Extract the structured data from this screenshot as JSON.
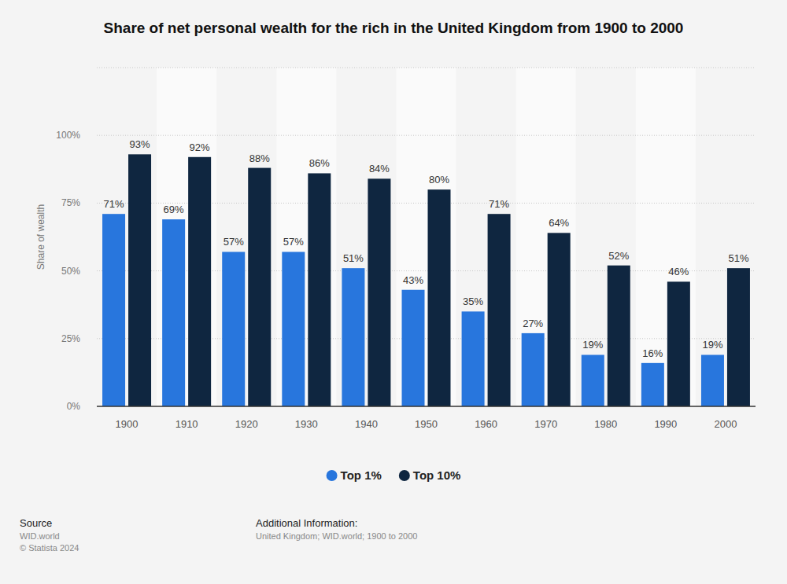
{
  "chart_data": {
    "type": "bar",
    "title": "Share of net personal wealth for the rich in the United Kingdom from 1900 to 2000",
    "y_label": "Share of wealth",
    "categories": [
      "1900",
      "1910",
      "1920",
      "1930",
      "1940",
      "1950",
      "1960",
      "1970",
      "1980",
      "1990",
      "2000"
    ],
    "series": [
      {
        "name": "Top 1%",
        "color": "#2876dd",
        "values": [
          71,
          69,
          57,
          57,
          51,
          43,
          35,
          27,
          19,
          16,
          19
        ],
        "value_labels": [
          "71%",
          "69%",
          "57%",
          "57%",
          "51%",
          "43%",
          "35%",
          "27%",
          "19%",
          "16%",
          "19%"
        ]
      },
      {
        "name": "Top 10%",
        "color": "#0f2640",
        "values": [
          93,
          92,
          88,
          86,
          84,
          80,
          71,
          64,
          52,
          46,
          51
        ],
        "value_labels": [
          "93%",
          "92%",
          "88%",
          "86%",
          "84%",
          "80%",
          "71%",
          "64%",
          "52%",
          "46%",
          "51%"
        ]
      }
    ],
    "ylim": [
      0,
      125
    ],
    "yticks": [
      {
        "value": 0,
        "label": "0%"
      },
      {
        "value": 25,
        "label": "25%"
      },
      {
        "value": 50,
        "label": "50%"
      },
      {
        "value": 75,
        "label": "75%"
      },
      {
        "value": 100,
        "label": "100%"
      }
    ],
    "grid": true,
    "data_labels": true,
    "legend": "bottom",
    "annotations": [
      "Source",
      "WID.world",
      "© Statista 2024",
      "Additional Information:",
      "United Kingdom; WID.world; 1900 to 2000"
    ]
  }
}
